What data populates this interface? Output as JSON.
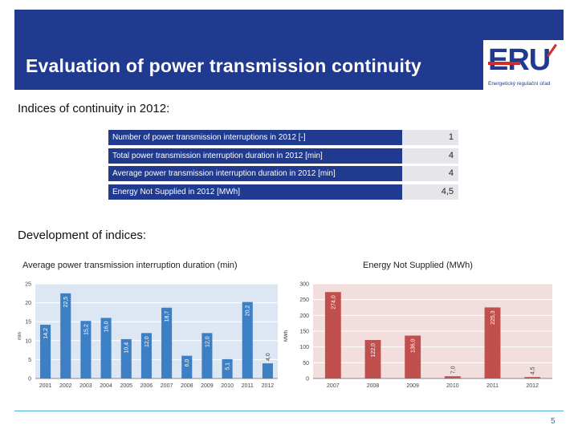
{
  "header": {
    "title": "Evaluation of power transmission continuity"
  },
  "logo": {
    "word": "ERU",
    "tagline": "Energetický regulační úřad"
  },
  "continuity": {
    "heading": "Indices of continuity in 2012:",
    "rows": [
      {
        "label": "Number of power transmission interruptions in 2012 [-]",
        "value": "1"
      },
      {
        "label": "Total power transmission interruption duration in 2012 [min]",
        "value": "4"
      },
      {
        "label": "Average power transmission interruption duration in 2012 [min]",
        "value": "4"
      },
      {
        "label": "Energy Not Supplied in 2012 [MWh]",
        "value": "4,5"
      }
    ]
  },
  "development": {
    "heading": "Development of indices:"
  },
  "footer": {
    "page": "5"
  },
  "colors": {
    "header_bg": "#1f3a8f",
    "blue_bar": "#3d7fc4",
    "red_bar": "#c0504d"
  },
  "chart_data": [
    {
      "type": "bar",
      "title": "Average power transmission interruption duration (min)",
      "ylabel": "min",
      "ylim": [
        0,
        25
      ],
      "yticks": [
        0,
        5,
        10,
        15,
        20,
        25
      ],
      "categories": [
        "2001",
        "2002",
        "2003",
        "2004",
        "2005",
        "2006",
        "2007",
        "2008",
        "2009",
        "2010",
        "2011",
        "2012"
      ],
      "values": [
        14.2,
        22.5,
        15.2,
        16.0,
        10.4,
        12.0,
        18.7,
        6.0,
        12.0,
        5.1,
        20.2,
        4.0
      ],
      "labels": [
        "14,2",
        "22,5",
        "15,2",
        "16,0",
        "10,4",
        "12,0",
        "18,7",
        "6,0",
        "12,0",
        "5,1",
        "20,2",
        "4,0"
      ],
      "color": "#3d7fc4"
    },
    {
      "type": "bar",
      "title": "Energy Not Supplied (MWh)",
      "ylabel": "MWh",
      "ylim": [
        0,
        300
      ],
      "yticks": [
        0,
        50,
        100,
        150,
        200,
        250,
        300
      ],
      "categories": [
        "2007",
        "2008",
        "2009",
        "2010",
        "2011",
        "2012"
      ],
      "values": [
        274.0,
        122.0,
        136.0,
        7.0,
        225.3,
        4.5
      ],
      "labels": [
        "274,0",
        "122,0",
        "136,0",
        "7,0",
        "225,3",
        "4,5"
      ],
      "color": "#c0504d"
    }
  ]
}
